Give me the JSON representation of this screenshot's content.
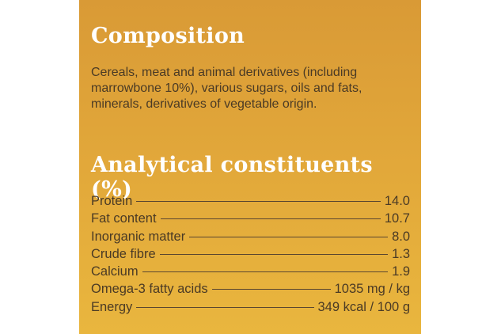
{
  "composition": {
    "title": "Composition",
    "lines": [
      "Cereals, meat and animal derivatives (including",
      "marrowbone 10%), various sugars, oils and fats,",
      "minerals, derivatives of vegetable origin."
    ]
  },
  "analytical": {
    "title": "Analytical constituents (%)",
    "rows": [
      {
        "label": "Protein",
        "value": "14.0"
      },
      {
        "label": "Fat content",
        "value": "10.7"
      },
      {
        "label": "Inorganic matter",
        "value": "8.0"
      },
      {
        "label": "Crude fibre",
        "value": "1.3"
      },
      {
        "label": "Calcium",
        "value": "1.9"
      },
      {
        "label": "Omega-3 fatty acids",
        "value": "1035 mg / kg"
      },
      {
        "label": "Energy",
        "value": "349 kcal / 100 g"
      }
    ]
  }
}
